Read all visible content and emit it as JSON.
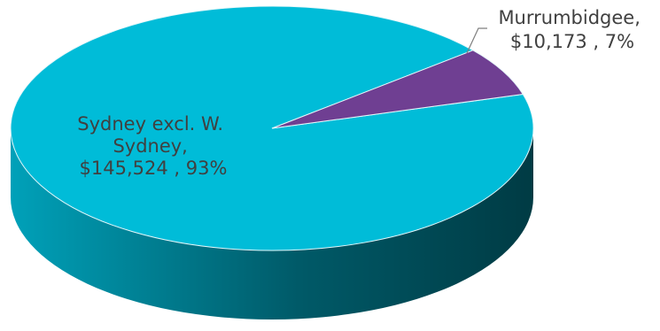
{
  "chart_data": {
    "type": "pie",
    "style": "3d",
    "title": "",
    "categories": [
      "Sydney excl. W. Sydney",
      "Murrumbidgee"
    ],
    "values": [
      145524,
      10173
    ],
    "percentages": [
      93,
      7
    ],
    "colors": [
      "#00bcd8",
      "#6f3f92"
    ],
    "data_labels": [
      {
        "slice": "sydney",
        "lines": [
          "Sydney excl. W.",
          "Sydney,",
          "$145,524 , 93%"
        ]
      },
      {
        "slice": "murrumbidgee",
        "lines": [
          "Murrumbidgee,",
          "$10,173 , 7%"
        ]
      }
    ],
    "legend": "none"
  }
}
